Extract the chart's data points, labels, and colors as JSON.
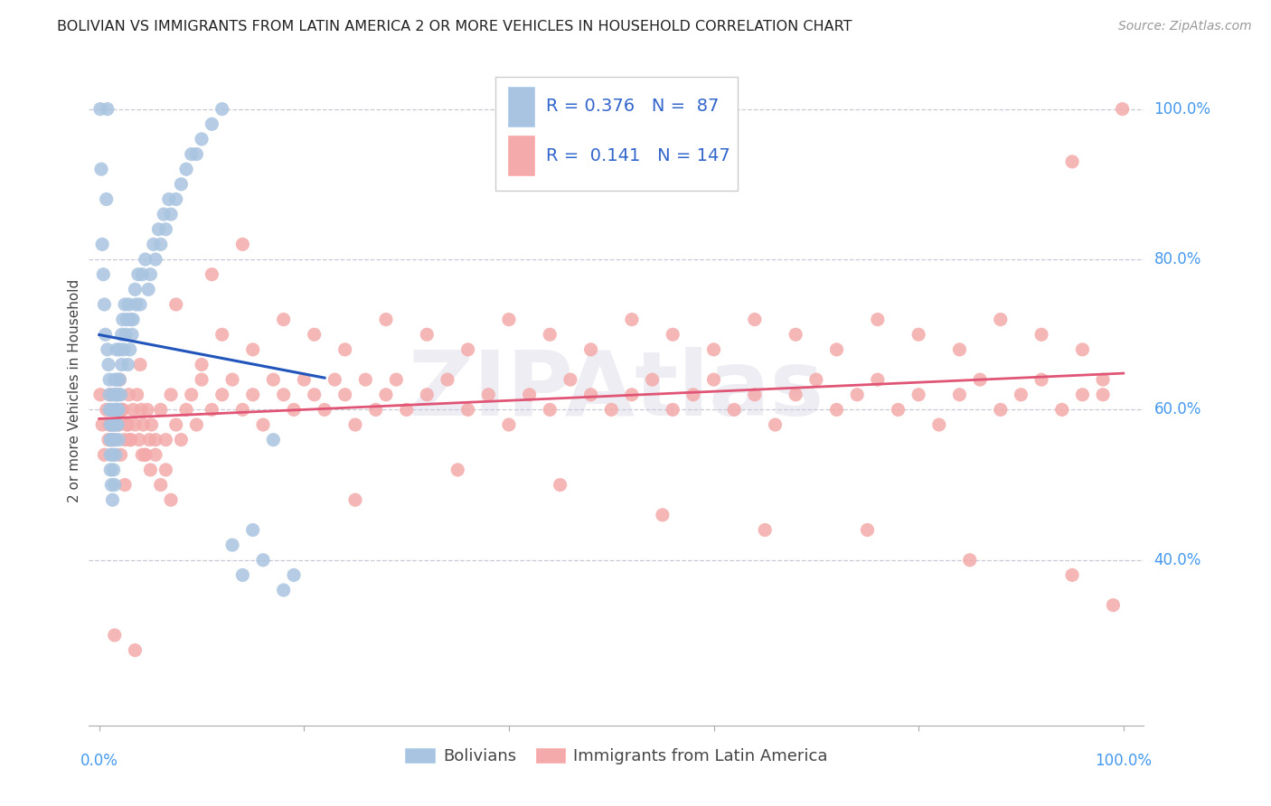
{
  "title": "BOLIVIAN VS IMMIGRANTS FROM LATIN AMERICA 2 OR MORE VEHICLES IN HOUSEHOLD CORRELATION CHART",
  "source": "Source: ZipAtlas.com",
  "ylabel": "2 or more Vehicles in Household",
  "ytick_labels": [
    "40.0%",
    "60.0%",
    "80.0%",
    "100.0%"
  ],
  "ytick_vals": [
    0.4,
    0.6,
    0.8,
    1.0
  ],
  "legend_blue_label": "Bolivians",
  "legend_pink_label": "Immigrants from Latin America",
  "R_blue": 0.376,
  "N_blue": 87,
  "R_pink": 0.141,
  "N_pink": 147,
  "blue_color": "#A8C4E0",
  "pink_color": "#F4AAAA",
  "trend_blue": "#2255BB",
  "trend_pink": "#E05575",
  "watermark": "ZIPAtlas",
  "blue_x": [
    0.001,
    0.008,
    0.002,
    0.007,
    0.003,
    0.004,
    0.005,
    0.006,
    0.008,
    0.009,
    0.01,
    0.01,
    0.01,
    0.011,
    0.011,
    0.011,
    0.011,
    0.012,
    0.012,
    0.012,
    0.013,
    0.013,
    0.013,
    0.014,
    0.014,
    0.014,
    0.015,
    0.015,
    0.015,
    0.015,
    0.016,
    0.016,
    0.016,
    0.017,
    0.017,
    0.017,
    0.018,
    0.018,
    0.019,
    0.019,
    0.02,
    0.02,
    0.021,
    0.022,
    0.022,
    0.023,
    0.024,
    0.025,
    0.026,
    0.027,
    0.028,
    0.029,
    0.03,
    0.031,
    0.032,
    0.033,
    0.035,
    0.036,
    0.038,
    0.04,
    0.042,
    0.045,
    0.048,
    0.05,
    0.053,
    0.055,
    0.058,
    0.06,
    0.063,
    0.065,
    0.068,
    0.07,
    0.075,
    0.08,
    0.085,
    0.09,
    0.095,
    0.1,
    0.11,
    0.12,
    0.13,
    0.14,
    0.15,
    0.16,
    0.17,
    0.18,
    0.19
  ],
  "blue_y": [
    1.0,
    1.0,
    0.92,
    0.88,
    0.82,
    0.78,
    0.74,
    0.7,
    0.68,
    0.66,
    0.64,
    0.62,
    0.6,
    0.58,
    0.56,
    0.54,
    0.52,
    0.5,
    0.56,
    0.6,
    0.48,
    0.54,
    0.58,
    0.52,
    0.58,
    0.62,
    0.5,
    0.56,
    0.6,
    0.64,
    0.54,
    0.58,
    0.62,
    0.6,
    0.64,
    0.68,
    0.58,
    0.62,
    0.56,
    0.6,
    0.64,
    0.68,
    0.62,
    0.66,
    0.7,
    0.72,
    0.68,
    0.74,
    0.7,
    0.72,
    0.66,
    0.74,
    0.68,
    0.72,
    0.7,
    0.72,
    0.76,
    0.74,
    0.78,
    0.74,
    0.78,
    0.8,
    0.76,
    0.78,
    0.82,
    0.8,
    0.84,
    0.82,
    0.86,
    0.84,
    0.88,
    0.86,
    0.88,
    0.9,
    0.92,
    0.94,
    0.94,
    0.96,
    0.98,
    1.0,
    0.42,
    0.38,
    0.44,
    0.4,
    0.56,
    0.36,
    0.38
  ],
  "pink_x": [
    0.001,
    0.003,
    0.005,
    0.007,
    0.009,
    0.011,
    0.013,
    0.015,
    0.017,
    0.019,
    0.021,
    0.023,
    0.025,
    0.027,
    0.029,
    0.031,
    0.033,
    0.035,
    0.037,
    0.039,
    0.041,
    0.043,
    0.045,
    0.047,
    0.049,
    0.051,
    0.055,
    0.06,
    0.065,
    0.07,
    0.075,
    0.08,
    0.085,
    0.09,
    0.095,
    0.1,
    0.11,
    0.12,
    0.13,
    0.14,
    0.15,
    0.16,
    0.17,
    0.18,
    0.19,
    0.2,
    0.21,
    0.22,
    0.23,
    0.24,
    0.25,
    0.26,
    0.27,
    0.28,
    0.29,
    0.3,
    0.32,
    0.34,
    0.36,
    0.38,
    0.4,
    0.42,
    0.44,
    0.46,
    0.48,
    0.5,
    0.52,
    0.54,
    0.56,
    0.58,
    0.6,
    0.62,
    0.64,
    0.66,
    0.68,
    0.7,
    0.72,
    0.74,
    0.76,
    0.78,
    0.8,
    0.82,
    0.84,
    0.86,
    0.88,
    0.9,
    0.92,
    0.94,
    0.96,
    0.98,
    0.01,
    0.012,
    0.018,
    0.022,
    0.028,
    0.035,
    0.042,
    0.05,
    0.06,
    0.07,
    0.1,
    0.12,
    0.15,
    0.18,
    0.21,
    0.24,
    0.28,
    0.32,
    0.36,
    0.4,
    0.44,
    0.48,
    0.52,
    0.56,
    0.6,
    0.64,
    0.68,
    0.72,
    0.76,
    0.8,
    0.84,
    0.88,
    0.92,
    0.96,
    0.98,
    0.03,
    0.045,
    0.065,
    0.025,
    0.055,
    0.25,
    0.35,
    0.45,
    0.55,
    0.65,
    0.75,
    0.85,
    0.95,
    0.99,
    0.015,
    0.999,
    0.95,
    0.02,
    0.04,
    0.075,
    0.11,
    0.14
  ],
  "pink_y": [
    0.62,
    0.58,
    0.54,
    0.6,
    0.56,
    0.62,
    0.58,
    0.56,
    0.6,
    0.58,
    0.54,
    0.6,
    0.56,
    0.58,
    0.62,
    0.56,
    0.6,
    0.58,
    0.62,
    0.56,
    0.6,
    0.58,
    0.54,
    0.6,
    0.56,
    0.58,
    0.54,
    0.6,
    0.56,
    0.62,
    0.58,
    0.56,
    0.6,
    0.62,
    0.58,
    0.64,
    0.6,
    0.62,
    0.64,
    0.6,
    0.62,
    0.58,
    0.64,
    0.62,
    0.6,
    0.64,
    0.62,
    0.6,
    0.64,
    0.62,
    0.58,
    0.64,
    0.6,
    0.62,
    0.64,
    0.6,
    0.62,
    0.64,
    0.6,
    0.62,
    0.58,
    0.62,
    0.6,
    0.64,
    0.62,
    0.6,
    0.62,
    0.64,
    0.6,
    0.62,
    0.64,
    0.6,
    0.62,
    0.58,
    0.62,
    0.64,
    0.6,
    0.62,
    0.64,
    0.6,
    0.62,
    0.58,
    0.62,
    0.64,
    0.6,
    0.62,
    0.64,
    0.6,
    0.62,
    0.64,
    0.58,
    0.56,
    0.62,
    0.6,
    0.58,
    0.28,
    0.54,
    0.52,
    0.5,
    0.48,
    0.66,
    0.7,
    0.68,
    0.72,
    0.7,
    0.68,
    0.72,
    0.7,
    0.68,
    0.72,
    0.7,
    0.68,
    0.72,
    0.7,
    0.68,
    0.72,
    0.7,
    0.68,
    0.72,
    0.7,
    0.68,
    0.72,
    0.7,
    0.68,
    0.62,
    0.56,
    0.54,
    0.52,
    0.5,
    0.56,
    0.48,
    0.52,
    0.5,
    0.46,
    0.44,
    0.44,
    0.4,
    0.38,
    0.34,
    0.3,
    1.0,
    0.93,
    0.64,
    0.66,
    0.74,
    0.78,
    0.82
  ]
}
